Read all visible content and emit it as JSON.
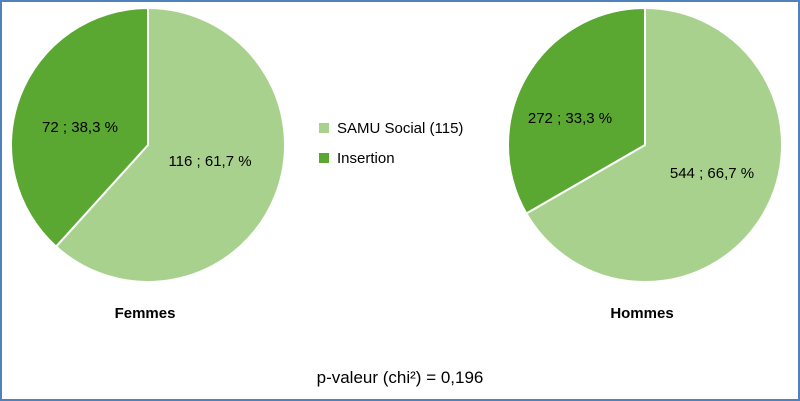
{
  "chart_data": {
    "type": "pie",
    "legend_position": "center",
    "categories": [
      "SAMU Social (115)",
      "Insertion"
    ],
    "colors": [
      "#a9d18e",
      "#5aa832"
    ],
    "pies": [
      {
        "title": "Femmes",
        "values": [
          116,
          72
        ],
        "labels": [
          "116 ; 61,7 %",
          "72 ; 38,3 %"
        ]
      },
      {
        "title": "Hommes",
        "values": [
          544,
          272
        ],
        "labels": [
          "544 ; 66,7 %",
          "272 ; 33,3 %"
        ]
      }
    ],
    "footer": "p-valeur (chi²) = 0,196"
  }
}
